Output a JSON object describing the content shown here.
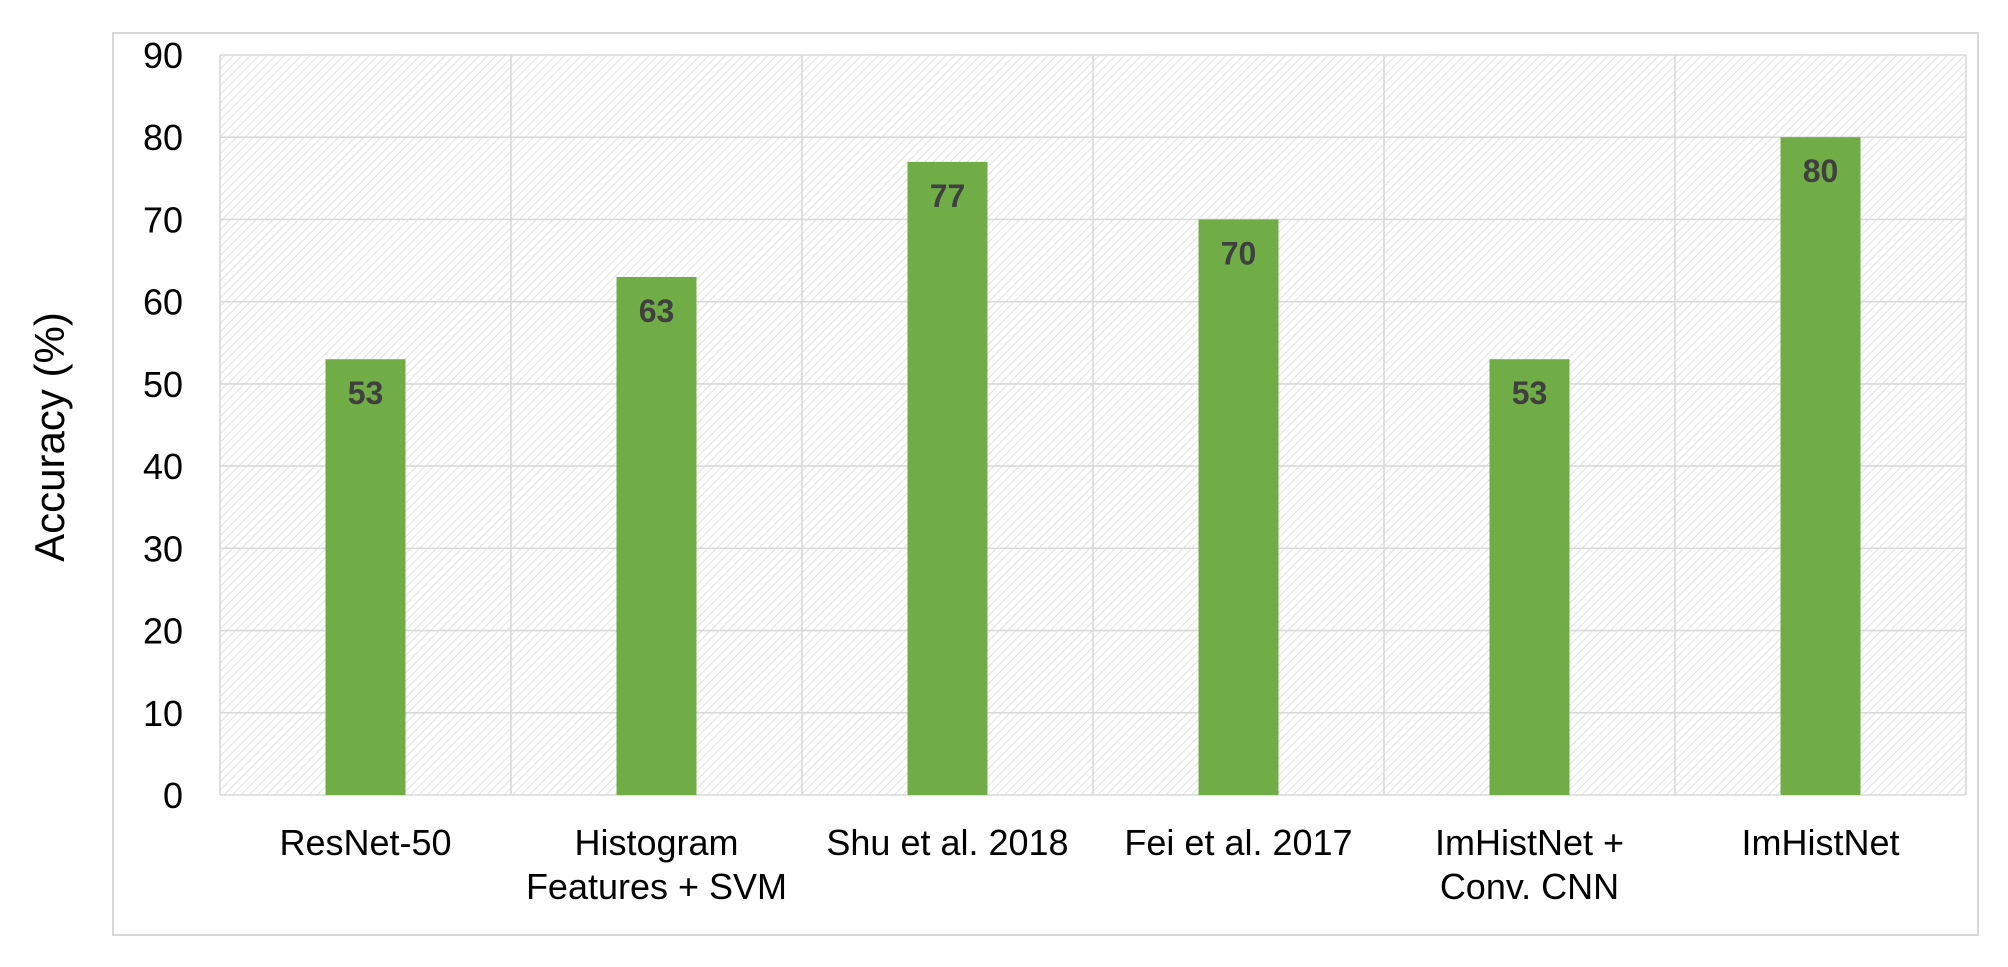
{
  "chart_data": {
    "type": "bar",
    "title": "",
    "xlabel": "",
    "ylabel": "Accuracy (%)",
    "categories": [
      [
        "ResNet-50"
      ],
      [
        "Histogram",
        "Features + SVM"
      ],
      [
        "Shu et al. 2018"
      ],
      [
        "Fei et al. 2017"
      ],
      [
        "ImHistNet +",
        "Conv. CNN"
      ],
      [
        "ImHistNet"
      ]
    ],
    "values": [
      53,
      63,
      77,
      70,
      53,
      80
    ],
    "ylim": [
      0,
      90
    ],
    "yticks": [
      0,
      10,
      20,
      30,
      40,
      50,
      60,
      70,
      80,
      90
    ],
    "grid": true,
    "hatched_background": true,
    "bar_color": "#70AD47",
    "data_label_color": "#404040"
  }
}
